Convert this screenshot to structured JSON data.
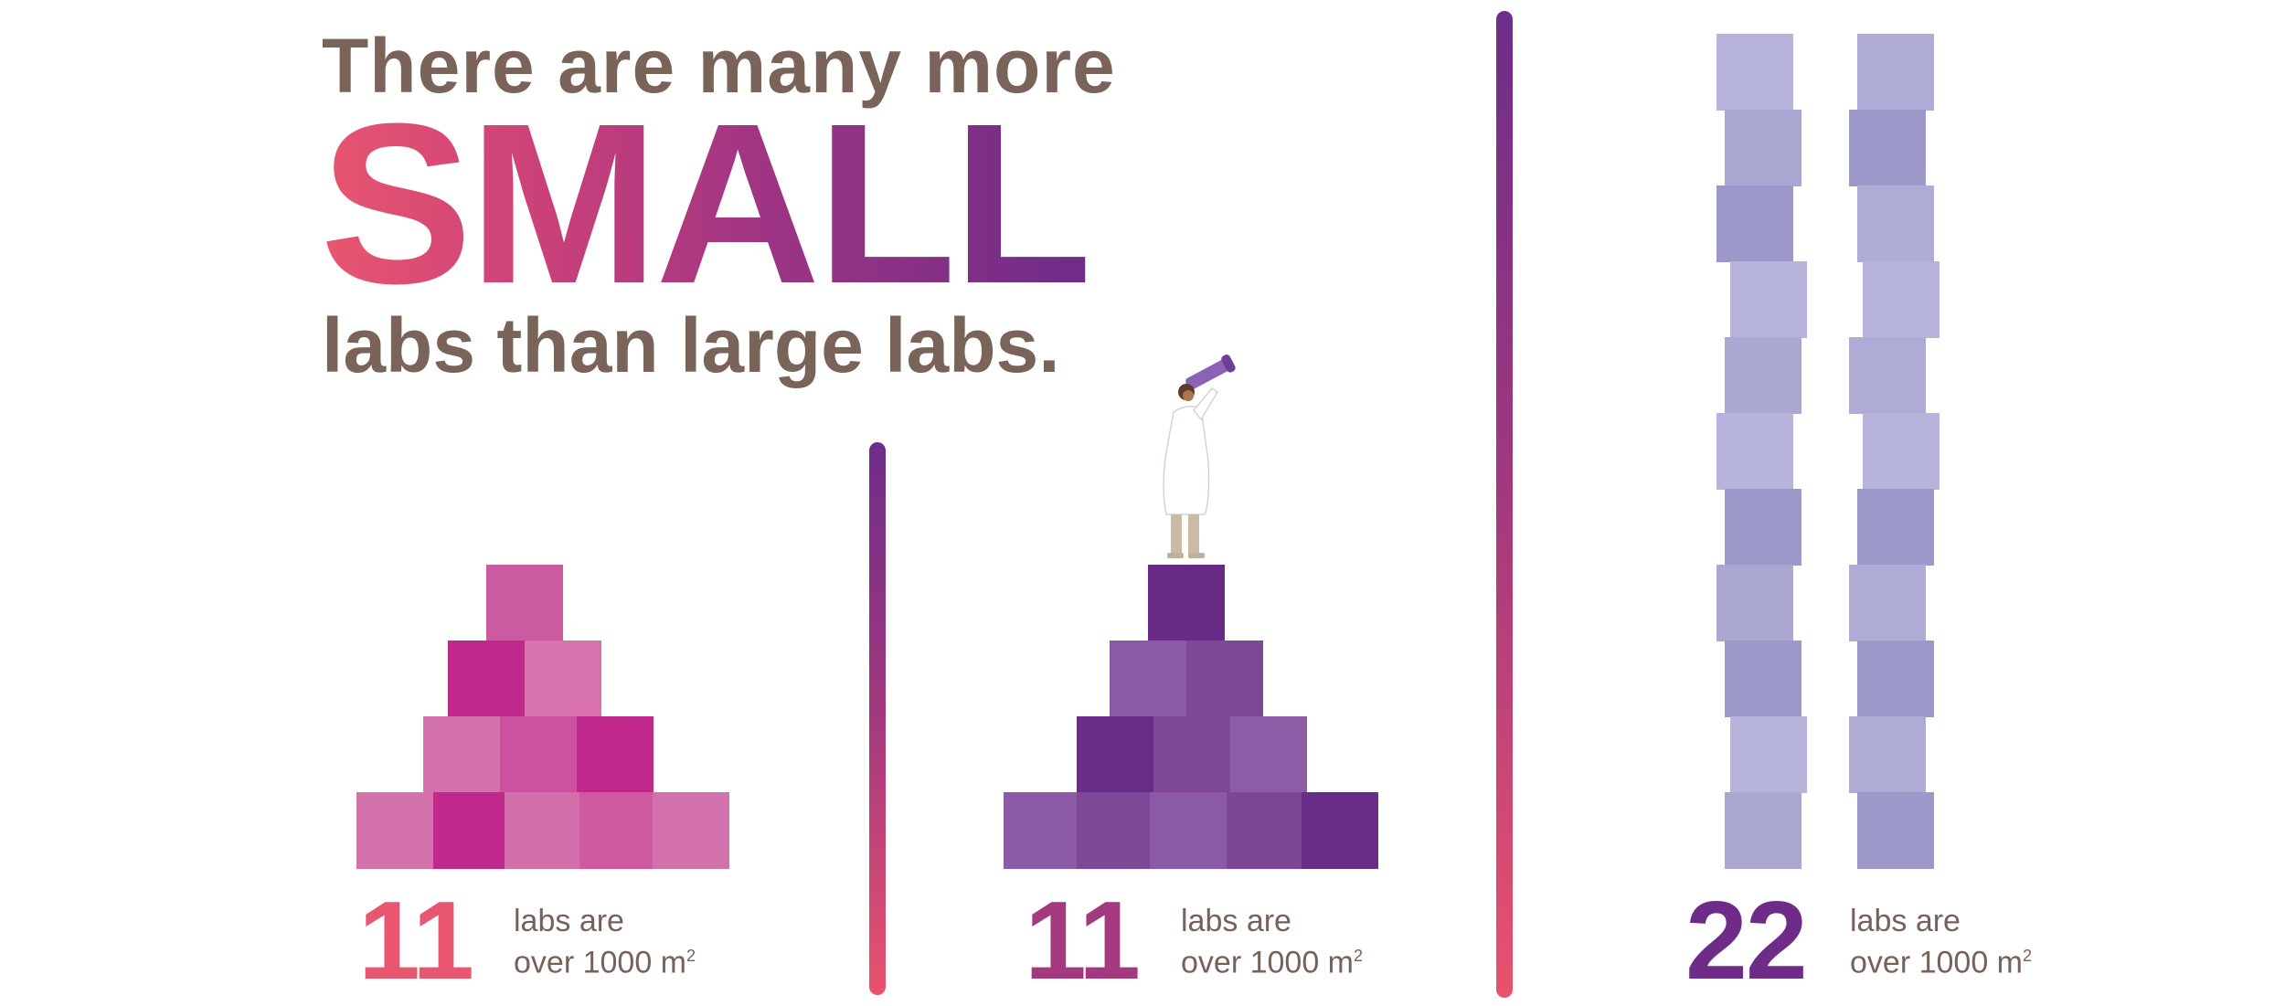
{
  "headline": {
    "line1": "There are many more",
    "line2": "SMALL",
    "line3": "labs than large labs."
  },
  "stats": [
    {
      "number": "11",
      "label_line1": "labs are",
      "label_line2": "over 1000 m",
      "unit_sup": "2",
      "number_color": "#e9566f"
    },
    {
      "number": "11",
      "label_line1": "labs are",
      "label_line2": "over 1000 m",
      "unit_sup": "2",
      "number_color": "#a3397e"
    },
    {
      "number": "22",
      "label_line1": "labs are",
      "label_line2": "over 1000 m",
      "unit_sup": "2",
      "number_color": "#6e2c88"
    }
  ],
  "colors": {
    "headline_text": "#7a6459",
    "gradient_start": "#e9566f",
    "gradient_end": "#6e2c88",
    "pink_blocks": [
      "#cf5aa0",
      "#c1288c",
      "#d772ad",
      "#cc52a0"
    ],
    "purple_blocks": [
      "#6a2b86",
      "#8b5aa6",
      "#7e4897"
    ],
    "lavender_blocks": [
      "#b6b4dc",
      "#aaa5d3",
      "#9c96c9"
    ]
  },
  "illustration": "person-with-telescope-icon"
}
